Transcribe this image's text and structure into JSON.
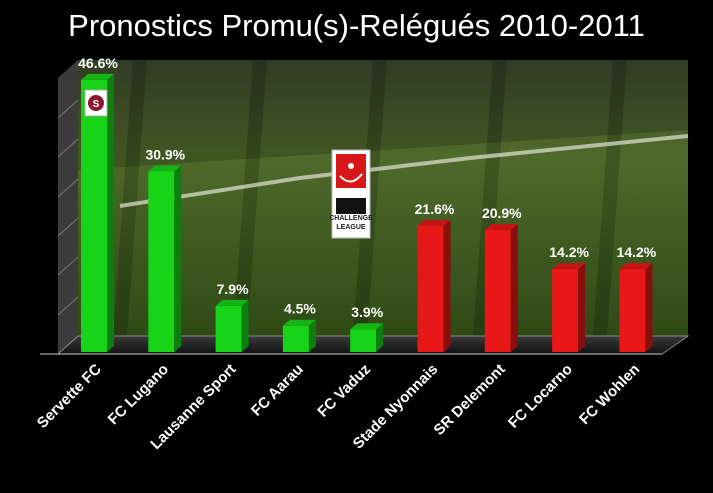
{
  "title": "Pronostics Promu(s)-Relégués 2010-2011",
  "colors": {
    "promoted": "#18d418",
    "relegated": "#e81818"
  },
  "logos": {
    "league_text_1": "CHALLENGE",
    "league_text_2": "LEAGUE",
    "club_badge_letter": "S"
  },
  "chart_data": {
    "type": "bar",
    "title": "Pronostics Promu(s)-Relégués 2010-2011",
    "xlabel": "",
    "ylabel": "",
    "ylim": [
      0,
      50
    ],
    "grid": false,
    "categories": [
      "Servette FC",
      "FC Lugano",
      "Lausanne Sport",
      "FC Aarau",
      "FC Vaduz",
      "Stade Nyonnais",
      "SR Delemont",
      "FC Locarno",
      "FC Wohlen"
    ],
    "values": [
      46.6,
      30.9,
      7.9,
      4.5,
      3.9,
      21.6,
      20.9,
      14.2,
      14.2
    ],
    "value_labels": [
      "46.6%",
      "30.9%",
      "7.9%",
      "4.5%",
      "3.9%",
      "21.6%",
      "20.9%",
      "14.2%",
      "14.2%"
    ],
    "bar_groups": [
      "promoted",
      "promoted",
      "promoted",
      "promoted",
      "promoted",
      "relegated",
      "relegated",
      "relegated",
      "relegated"
    ]
  }
}
